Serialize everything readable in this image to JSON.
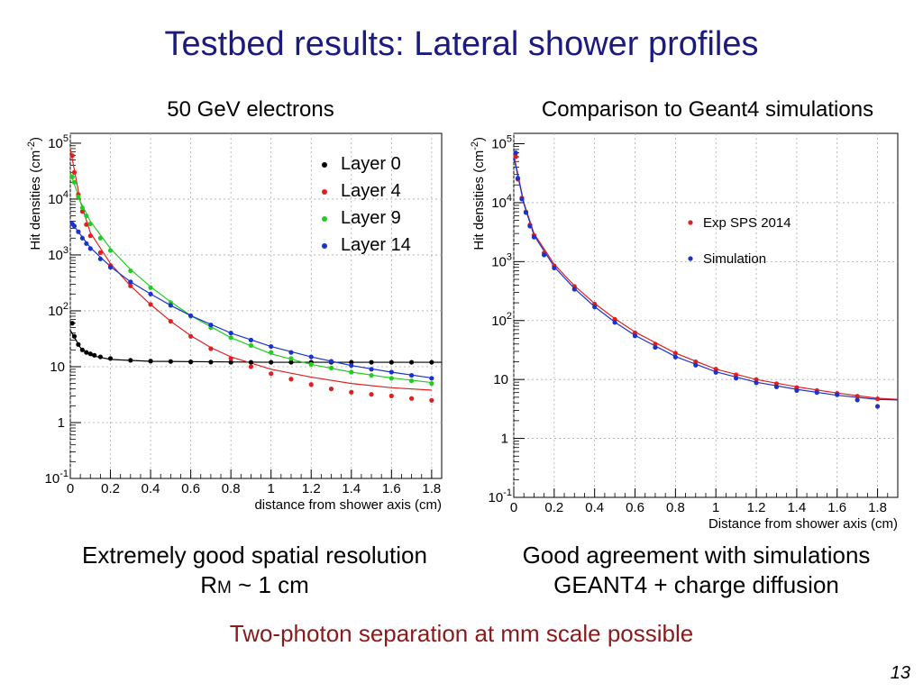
{
  "slide": {
    "title": "Testbed results: Lateral shower profiles",
    "left_subtitle": "50 GeV electrons",
    "right_subtitle": "Comparison to Geant4 simulations",
    "left_caption_line1": "Extremely good spatial resolution",
    "left_caption_rm": "R",
    "left_caption_rm_sub": "M",
    "left_caption_rm_rest": " ~ 1 cm",
    "right_caption_line1": "Good agreement with simulations",
    "right_caption_line2": "GEANT4 + charge diffusion",
    "bottom_note": "Two-photon separation at mm scale possible",
    "page_number": "13",
    "colors": {
      "title": "#1a1a80",
      "bottom_note": "#8b1a1a"
    }
  },
  "chart_data": [
    {
      "type": "scatter",
      "title": "",
      "xlabel": "distance from shower axis (cm)",
      "ylabel": "Hit densities (cm",
      "ylabel_sup": "-2",
      "ylabel_end": ")",
      "yscale": "log",
      "xlim": [
        0,
        1.85
      ],
      "ylim": [
        0.1,
        150000
      ],
      "xticks": [
        "0",
        "0.2",
        "0.4",
        "0.6",
        "0.8",
        "1",
        "1.2",
        "1.4",
        "1.6",
        "1.8"
      ],
      "yticks": [
        {
          "base": "10",
          "sup": "-1"
        },
        {
          "base": "1",
          "sup": ""
        },
        {
          "base": "10",
          "sup": ""
        },
        {
          "base": "10",
          "sup": "2"
        },
        {
          "base": "10",
          "sup": "3"
        },
        {
          "base": "10",
          "sup": "4"
        },
        {
          "base": "10",
          "sup": "5"
        }
      ],
      "grid": true,
      "legend_position": "top-right",
      "series": [
        {
          "name": "Layer 0",
          "color": "#000000",
          "x": [
            0.01,
            0.02,
            0.04,
            0.06,
            0.08,
            0.1,
            0.12,
            0.15,
            0.2,
            0.3,
            0.4,
            0.5,
            0.6,
            0.7,
            0.8,
            0.9,
            1.0,
            1.1,
            1.2,
            1.3,
            1.4,
            1.5,
            1.6,
            1.7,
            1.8
          ],
          "y": [
            60,
            35,
            25,
            20,
            18,
            17,
            16,
            15,
            14,
            13,
            12.6,
            12.4,
            12.2,
            12.1,
            12,
            12,
            12,
            12,
            12,
            12,
            12,
            12,
            12,
            12,
            12
          ],
          "fit": [
            [
              0,
              45
            ],
            [
              0.05,
              22
            ],
            [
              0.1,
              16
            ],
            [
              0.2,
              13.5
            ],
            [
              0.4,
              12.5
            ],
            [
              1.0,
              12
            ],
            [
              1.85,
              12
            ]
          ]
        },
        {
          "name": "Layer 4",
          "color": "#e02020",
          "x": [
            0.01,
            0.02,
            0.04,
            0.06,
            0.08,
            0.1,
            0.15,
            0.2,
            0.3,
            0.4,
            0.5,
            0.6,
            0.7,
            0.8,
            0.9,
            1.0,
            1.1,
            1.2,
            1.3,
            1.4,
            1.5,
            1.6,
            1.7,
            1.8
          ],
          "y": [
            60000,
            30000,
            12000,
            6000,
            3500,
            2200,
            1100,
            650,
            280,
            130,
            65,
            35,
            21,
            14,
            10,
            7.5,
            6,
            4.8,
            4,
            3.5,
            3.2,
            3,
            2.7,
            2.5
          ],
          "fit": [
            [
              0,
              80000
            ],
            [
              0.05,
              9000
            ],
            [
              0.1,
              2500
            ],
            [
              0.2,
              700
            ],
            [
              0.3,
              280
            ],
            [
              0.4,
              130
            ],
            [
              0.5,
              65
            ],
            [
              0.6,
              36
            ],
            [
              0.7,
              22
            ],
            [
              0.8,
              15
            ],
            [
              1.0,
              9
            ],
            [
              1.2,
              6.5
            ],
            [
              1.4,
              5
            ],
            [
              1.6,
              4.2
            ],
            [
              1.8,
              3.8
            ]
          ]
        },
        {
          "name": "Layer 9",
          "color": "#22cc22",
          "x": [
            0.01,
            0.02,
            0.04,
            0.06,
            0.08,
            0.1,
            0.15,
            0.2,
            0.3,
            0.4,
            0.5,
            0.6,
            0.7,
            0.8,
            0.9,
            1.0,
            1.1,
            1.2,
            1.3,
            1.4,
            1.5,
            1.6,
            1.7,
            1.8
          ],
          "y": [
            25000,
            20000,
            11000,
            7000,
            5000,
            3600,
            2000,
            1200,
            520,
            260,
            140,
            80,
            50,
            33,
            24,
            18,
            14,
            11,
            9.5,
            8,
            7,
            6.2,
            5.6,
            5
          ],
          "fit": [
            [
              0,
              30000
            ],
            [
              0.05,
              9000
            ],
            [
              0.1,
              4000
            ],
            [
              0.2,
              1300
            ],
            [
              0.3,
              550
            ],
            [
              0.4,
              270
            ],
            [
              0.5,
              145
            ],
            [
              0.6,
              82
            ],
            [
              0.8,
              33
            ],
            [
              1.0,
              17
            ],
            [
              1.2,
              11
            ],
            [
              1.4,
              8
            ],
            [
              1.6,
              6.3
            ],
            [
              1.8,
              5.2
            ]
          ]
        },
        {
          "name": "Layer 14",
          "color": "#1a33cc",
          "x": [
            0.01,
            0.02,
            0.04,
            0.06,
            0.08,
            0.1,
            0.15,
            0.2,
            0.3,
            0.4,
            0.5,
            0.6,
            0.7,
            0.8,
            0.9,
            1.0,
            1.1,
            1.2,
            1.3,
            1.4,
            1.5,
            1.6,
            1.7,
            1.8
          ],
          "y": [
            3600,
            3300,
            2600,
            2000,
            1600,
            1300,
            850,
            600,
            330,
            200,
            125,
            82,
            56,
            40,
            30,
            23,
            18,
            15,
            12.5,
            10.5,
            9,
            8,
            7,
            6.2
          ],
          "fit": [
            [
              0,
              4000
            ],
            [
              0.1,
              1350
            ],
            [
              0.2,
              620
            ],
            [
              0.3,
              330
            ],
            [
              0.4,
              200
            ],
            [
              0.5,
              125
            ],
            [
              0.6,
              82
            ],
            [
              0.8,
              40
            ],
            [
              1.0,
              23
            ],
            [
              1.2,
              15
            ],
            [
              1.4,
              10.5
            ],
            [
              1.6,
              8
            ],
            [
              1.8,
              6.3
            ]
          ]
        }
      ]
    },
    {
      "type": "scatter",
      "title": "",
      "xlabel": "Distance from shower axis (cm)",
      "ylabel": "Hit densities (cm",
      "ylabel_sup": "-2",
      "ylabel_end": ")",
      "yscale": "log",
      "xlim": [
        0,
        1.9
      ],
      "ylim": [
        0.1,
        150000
      ],
      "xticks": [
        "0",
        "0.2",
        "0.4",
        "0.6",
        "0.8",
        "1",
        "1.2",
        "1.4",
        "1.6",
        "1.8"
      ],
      "yticks": [
        {
          "base": "10",
          "sup": "-1"
        },
        {
          "base": "1",
          "sup": ""
        },
        {
          "base": "10",
          "sup": ""
        },
        {
          "base": "10",
          "sup": "2"
        },
        {
          "base": "10",
          "sup": "3"
        },
        {
          "base": "10",
          "sup": "4"
        },
        {
          "base": "10",
          "sup": "5"
        }
      ],
      "grid": true,
      "legend_position": "top-right",
      "series": [
        {
          "name": "Exp SPS 2014",
          "color": "#e02020",
          "x": [
            0.01,
            0.02,
            0.04,
            0.06,
            0.08,
            0.1,
            0.15,
            0.2,
            0.3,
            0.4,
            0.5,
            0.6,
            0.7,
            0.8,
            0.9,
            1.0,
            1.1,
            1.2,
            1.3,
            1.4,
            1.5,
            1.6,
            1.7,
            1.8
          ],
          "y": [
            60000,
            25000,
            12000,
            7000,
            4200,
            2800,
            1400,
            850,
            380,
            190,
            105,
            62,
            40,
            28,
            20,
            15,
            12,
            10,
            8.5,
            7.3,
            6.5,
            5.8,
            5.2,
            4.7
          ],
          "fit": [
            [
              0,
              65000
            ],
            [
              0.05,
              10000
            ],
            [
              0.1,
              3000
            ],
            [
              0.2,
              900
            ],
            [
              0.3,
              390
            ],
            [
              0.4,
              195
            ],
            [
              0.5,
              108
            ],
            [
              0.6,
              64
            ],
            [
              0.8,
              28
            ],
            [
              1.0,
              15
            ],
            [
              1.2,
              10
            ],
            [
              1.4,
              7.5
            ],
            [
              1.6,
              5.9
            ],
            [
              1.8,
              4.8
            ],
            [
              1.9,
              4.6
            ]
          ]
        },
        {
          "name": "Simulation",
          "color": "#1a33cc",
          "x": [
            0.01,
            0.02,
            0.04,
            0.06,
            0.08,
            0.1,
            0.15,
            0.2,
            0.3,
            0.4,
            0.5,
            0.6,
            0.7,
            0.8,
            0.9,
            1.0,
            1.1,
            1.2,
            1.3,
            1.4,
            1.5,
            1.6,
            1.7,
            1.8
          ],
          "y": [
            70000,
            26000,
            11500,
            6800,
            4000,
            2600,
            1300,
            780,
            340,
            170,
            93,
            55,
            35,
            24,
            17.5,
            13.2,
            10.5,
            8.8,
            7.5,
            6.5,
            6,
            5.5,
            4.5,
            3.5
          ],
          "fit": [
            [
              0,
              60000
            ],
            [
              0.05,
              9500
            ],
            [
              0.1,
              2800
            ],
            [
              0.2,
              820
            ],
            [
              0.3,
              350
            ],
            [
              0.4,
              172
            ],
            [
              0.5,
              94
            ],
            [
              0.6,
              56
            ],
            [
              0.8,
              24.5
            ],
            [
              1.0,
              13.5
            ],
            [
              1.2,
              9
            ],
            [
              1.4,
              6.8
            ],
            [
              1.6,
              5.4
            ],
            [
              1.8,
              4.6
            ],
            [
              1.9,
              4.5
            ]
          ]
        }
      ]
    }
  ]
}
